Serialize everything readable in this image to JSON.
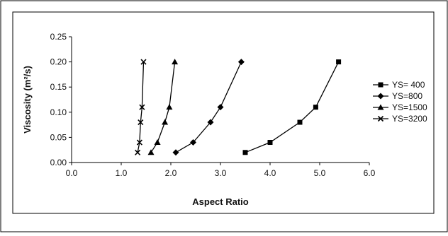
{
  "chart_data": {
    "type": "line",
    "xlabel": "Aspect Ratio",
    "ylabel": "Viscosity (m²/s)",
    "xlim": [
      0,
      6
    ],
    "ylim": [
      0,
      0.25
    ],
    "x_ticks": [
      "0.0",
      "1.0",
      "2.0",
      "3.0",
      "4.0",
      "5.0",
      "6.0"
    ],
    "y_ticks": [
      "0.00",
      "0.05",
      "0.10",
      "0.15",
      "0.20",
      "0.25"
    ],
    "grid": false,
    "legend": "right",
    "series": [
      {
        "name": "YS= 400",
        "marker": "square",
        "points": [
          [
            3.5,
            0.02
          ],
          [
            4.0,
            0.04
          ],
          [
            4.6,
            0.08
          ],
          [
            4.92,
            0.11
          ],
          [
            5.38,
            0.2
          ]
        ]
      },
      {
        "name": "YS=800",
        "marker": "diamond",
        "points": [
          [
            2.1,
            0.02
          ],
          [
            2.45,
            0.04
          ],
          [
            2.8,
            0.08
          ],
          [
            3.0,
            0.11
          ],
          [
            3.42,
            0.2
          ]
        ]
      },
      {
        "name": "YS=1500",
        "marker": "triangle",
        "points": [
          [
            1.6,
            0.02
          ],
          [
            1.73,
            0.04
          ],
          [
            1.88,
            0.08
          ],
          [
            1.97,
            0.11
          ],
          [
            2.08,
            0.2
          ]
        ]
      },
      {
        "name": "YS=3200",
        "marker": "x",
        "points": [
          [
            1.33,
            0.02
          ],
          [
            1.37,
            0.04
          ],
          [
            1.39,
            0.08
          ],
          [
            1.42,
            0.11
          ],
          [
            1.45,
            0.2
          ]
        ]
      }
    ]
  }
}
